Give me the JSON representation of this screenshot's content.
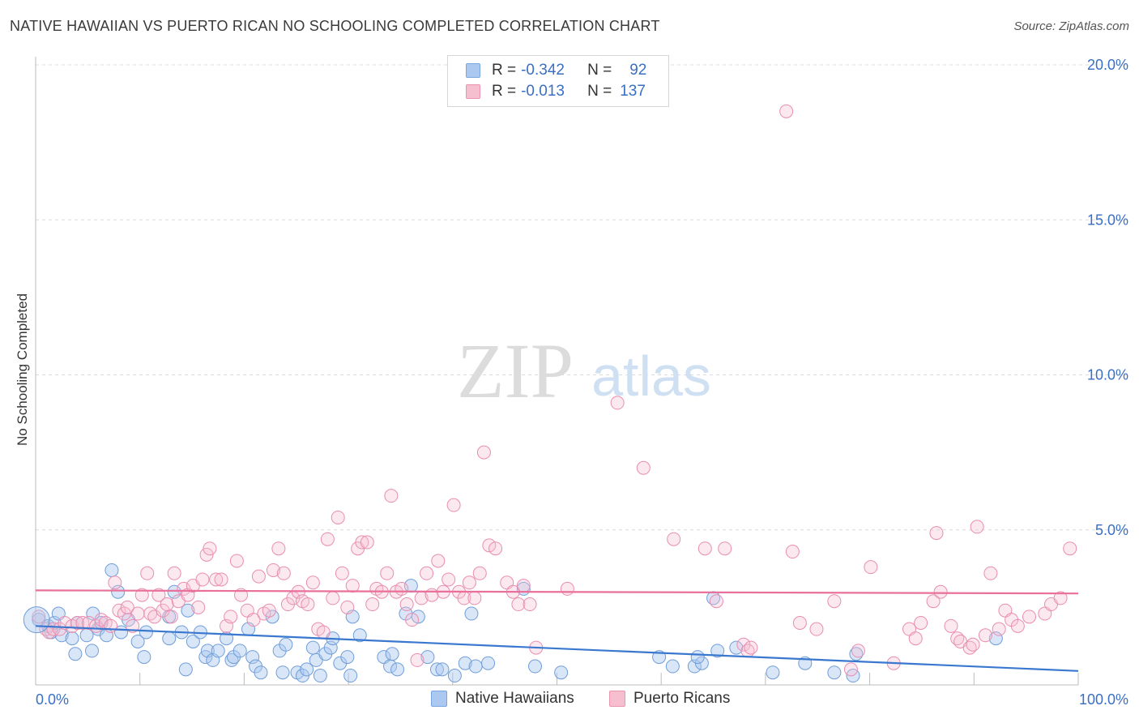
{
  "header": {
    "title": "NATIVE HAWAIIAN VS PUERTO RICAN NO SCHOOLING COMPLETED CORRELATION CHART",
    "source": "Source: ZipAtlas.com"
  },
  "watermark": {
    "zip": "ZIP",
    "atlas": "atlas"
  },
  "legend": {
    "rows": [
      {
        "r_label": "R =",
        "r_value": "-0.342",
        "n_label": "N =",
        "n_value": "92",
        "color": "#aac8f0",
        "stroke": "#7aa6e0"
      },
      {
        "r_label": "R =",
        "r_value": "-0.013",
        "n_label": "N =",
        "n_value": "137",
        "color": "#f6bfd0",
        "stroke": "#ec93b0"
      }
    ]
  },
  "bottom_legend": [
    {
      "label": "Native Hawaiians",
      "color": "#aac8f0",
      "stroke": "#7aa6e0"
    },
    {
      "label": "Puerto Ricans",
      "color": "#f6bfd0",
      "stroke": "#ec93b0"
    }
  ],
  "chart_data": {
    "type": "scatter",
    "title": "NATIVE HAWAIIAN VS PUERTO RICAN NO SCHOOLING COMPLETED CORRELATION CHART",
    "xlabel": "",
    "ylabel": "No Schooling Completed",
    "xlim": [
      0,
      100
    ],
    "ylim": [
      0,
      20.5
    ],
    "x_tick_labels": [
      "0.0%",
      "100.0%"
    ],
    "y_ticks": [
      5,
      10,
      15,
      20
    ],
    "y_tick_labels": [
      "5.0%",
      "10.0%",
      "15.0%",
      "20.0%"
    ],
    "grid": true,
    "colors": {
      "blue": "#3a78d0",
      "pink": "#e8709a",
      "axis_text": "#3a6fc4"
    },
    "series": [
      {
        "name": "Native Hawaiians",
        "r": -0.342,
        "n": 92,
        "trend": {
          "x": [
            0,
            100
          ],
          "y": [
            1.9,
            0.45
          ]
        },
        "points": [
          [
            0.3,
            2.1
          ],
          [
            1.2,
            1.9
          ],
          [
            1.5,
            1.7
          ],
          [
            1.8,
            2.0
          ],
          [
            2.5,
            1.6
          ],
          [
            2.2,
            2.3
          ],
          [
            3.5,
            1.5
          ],
          [
            4.0,
            2.0
          ],
          [
            3.8,
            1.0
          ],
          [
            4.9,
            1.6
          ],
          [
            5.4,
            1.1
          ],
          [
            5.5,
            2.3
          ],
          [
            6.0,
            1.8
          ],
          [
            6.3,
            2.0
          ],
          [
            6.8,
            1.6
          ],
          [
            7.3,
            3.7
          ],
          [
            7.9,
            3.0
          ],
          [
            8.2,
            1.7
          ],
          [
            8.9,
            2.1
          ],
          [
            9.8,
            1.4
          ],
          [
            10.4,
            0.9
          ],
          [
            10.6,
            1.7
          ],
          [
            12.8,
            1.5
          ],
          [
            12.8,
            2.2
          ],
          [
            13.3,
            3.0
          ],
          [
            14.0,
            1.7
          ],
          [
            14.4,
            0.5
          ],
          [
            14.6,
            2.4
          ],
          [
            15.1,
            1.4
          ],
          [
            15.8,
            1.7
          ],
          [
            16.3,
            0.9
          ],
          [
            16.5,
            1.1
          ],
          [
            17.0,
            0.8
          ],
          [
            17.5,
            1.1
          ],
          [
            18.3,
            1.5
          ],
          [
            18.8,
            0.8
          ],
          [
            19.0,
            0.9
          ],
          [
            19.6,
            1.1
          ],
          [
            20.4,
            1.8
          ],
          [
            20.8,
            0.9
          ],
          [
            21.1,
            0.6
          ],
          [
            21.6,
            0.4
          ],
          [
            22.7,
            2.2
          ],
          [
            23.4,
            1.1
          ],
          [
            23.7,
            0.4
          ],
          [
            24.0,
            1.3
          ],
          [
            25.1,
            0.4
          ],
          [
            25.6,
            0.3
          ],
          [
            26.0,
            0.5
          ],
          [
            26.6,
            1.2
          ],
          [
            26.9,
            0.8
          ],
          [
            27.3,
            0.3
          ],
          [
            27.8,
            1.0
          ],
          [
            28.3,
            1.2
          ],
          [
            28.5,
            1.5
          ],
          [
            29.2,
            0.7
          ],
          [
            29.9,
            0.9
          ],
          [
            30.2,
            0.3
          ],
          [
            30.4,
            2.2
          ],
          [
            31.1,
            1.6
          ],
          [
            33.4,
            0.9
          ],
          [
            34.0,
            0.6
          ],
          [
            34.2,
            1.0
          ],
          [
            34.7,
            0.5
          ],
          [
            35.5,
            2.3
          ],
          [
            36.0,
            3.2
          ],
          [
            36.7,
            2.2
          ],
          [
            37.6,
            0.9
          ],
          [
            38.5,
            0.5
          ],
          [
            39.0,
            0.5
          ],
          [
            40.2,
            0.3
          ],
          [
            41.2,
            0.7
          ],
          [
            41.8,
            2.3
          ],
          [
            42.2,
            0.6
          ],
          [
            43.4,
            0.7
          ],
          [
            46.8,
            3.1
          ],
          [
            47.9,
            0.6
          ],
          [
            50.4,
            0.4
          ],
          [
            59.8,
            0.9
          ],
          [
            61.1,
            0.6
          ],
          [
            63.2,
            0.6
          ],
          [
            63.9,
            0.7
          ],
          [
            63.5,
            0.9
          ],
          [
            65.4,
            1.1
          ],
          [
            65.0,
            2.8
          ],
          [
            67.2,
            1.2
          ],
          [
            70.7,
            0.4
          ],
          [
            73.8,
            0.7
          ],
          [
            76.6,
            0.4
          ],
          [
            78.4,
            0.3
          ],
          [
            78.7,
            1.0
          ],
          [
            92.1,
            1.5
          ]
        ]
      },
      {
        "name": "Puerto Ricans",
        "r": -0.013,
        "n": 137,
        "trend": {
          "x": [
            0,
            100
          ],
          "y": [
            3.05,
            2.95
          ]
        },
        "points": [
          [
            0.3,
            2.2
          ],
          [
            1.0,
            1.8
          ],
          [
            1.3,
            1.7
          ],
          [
            1.7,
            1.8
          ],
          [
            2.3,
            1.8
          ],
          [
            2.8,
            2.0
          ],
          [
            3.5,
            1.9
          ],
          [
            4.0,
            2.0
          ],
          [
            4.5,
            2.0
          ],
          [
            5.1,
            2.0
          ],
          [
            5.8,
            1.9
          ],
          [
            6.3,
            2.1
          ],
          [
            6.7,
            2.0
          ],
          [
            7.2,
            1.9
          ],
          [
            7.6,
            3.3
          ],
          [
            8.0,
            2.4
          ],
          [
            8.5,
            2.3
          ],
          [
            8.8,
            2.5
          ],
          [
            9.3,
            1.9
          ],
          [
            9.8,
            2.3
          ],
          [
            10.2,
            2.9
          ],
          [
            10.7,
            3.6
          ],
          [
            11.0,
            2.3
          ],
          [
            11.4,
            2.2
          ],
          [
            11.8,
            2.9
          ],
          [
            12.2,
            2.4
          ],
          [
            12.6,
            2.6
          ],
          [
            13.0,
            2.2
          ],
          [
            13.3,
            3.6
          ],
          [
            13.7,
            2.7
          ],
          [
            14.2,
            3.1
          ],
          [
            14.6,
            2.9
          ],
          [
            15.1,
            3.2
          ],
          [
            15.6,
            2.5
          ],
          [
            16.0,
            3.4
          ],
          [
            16.4,
            4.2
          ],
          [
            16.7,
            4.4
          ],
          [
            17.3,
            3.4
          ],
          [
            17.8,
            3.4
          ],
          [
            18.3,
            1.9
          ],
          [
            18.7,
            2.2
          ],
          [
            19.3,
            4.0
          ],
          [
            19.7,
            2.9
          ],
          [
            20.3,
            2.4
          ],
          [
            20.9,
            2.1
          ],
          [
            21.4,
            3.5
          ],
          [
            21.9,
            2.3
          ],
          [
            22.4,
            2.4
          ],
          [
            22.8,
            3.7
          ],
          [
            23.3,
            4.4
          ],
          [
            23.8,
            3.6
          ],
          [
            24.2,
            2.6
          ],
          [
            24.7,
            2.8
          ],
          [
            25.2,
            3.0
          ],
          [
            25.6,
            2.7
          ],
          [
            26.1,
            2.6
          ],
          [
            26.6,
            3.3
          ],
          [
            27.1,
            1.8
          ],
          [
            27.6,
            1.7
          ],
          [
            28.0,
            4.7
          ],
          [
            28.5,
            2.8
          ],
          [
            29.0,
            5.4
          ],
          [
            29.4,
            3.6
          ],
          [
            29.9,
            2.5
          ],
          [
            30.4,
            3.2
          ],
          [
            30.9,
            4.4
          ],
          [
            31.3,
            4.6
          ],
          [
            31.8,
            4.6
          ],
          [
            32.3,
            2.6
          ],
          [
            32.7,
            3.1
          ],
          [
            33.2,
            3.0
          ],
          [
            33.7,
            3.6
          ],
          [
            34.1,
            6.1
          ],
          [
            34.6,
            3.0
          ],
          [
            35.1,
            3.1
          ],
          [
            35.6,
            2.6
          ],
          [
            36.1,
            2.1
          ],
          [
            36.6,
            0.8
          ],
          [
            37.0,
            2.8
          ],
          [
            37.5,
            3.6
          ],
          [
            38.0,
            2.9
          ],
          [
            38.6,
            4.0
          ],
          [
            39.1,
            3.0
          ],
          [
            39.6,
            3.4
          ],
          [
            40.1,
            5.8
          ],
          [
            40.6,
            3.0
          ],
          [
            41.1,
            2.8
          ],
          [
            41.6,
            3.3
          ],
          [
            42.1,
            2.8
          ],
          [
            42.6,
            3.6
          ],
          [
            43.0,
            7.5
          ],
          [
            43.5,
            4.5
          ],
          [
            44.1,
            4.4
          ],
          [
            45.2,
            3.3
          ],
          [
            45.8,
            3.0
          ],
          [
            46.3,
            2.6
          ],
          [
            46.8,
            3.2
          ],
          [
            47.4,
            2.6
          ],
          [
            48.0,
            1.2
          ],
          [
            51.0,
            3.1
          ],
          [
            55.8,
            9.1
          ],
          [
            58.3,
            7.0
          ],
          [
            61.2,
            4.7
          ],
          [
            64.2,
            4.4
          ],
          [
            65.3,
            2.7
          ],
          [
            66.1,
            4.4
          ],
          [
            67.9,
            1.3
          ],
          [
            68.3,
            1.1
          ],
          [
            68.6,
            1.2
          ],
          [
            72.0,
            18.5
          ],
          [
            72.6,
            4.3
          ],
          [
            73.3,
            2.0
          ],
          [
            74.9,
            1.8
          ],
          [
            76.6,
            2.7
          ],
          [
            78.2,
            0.5
          ],
          [
            78.9,
            1.1
          ],
          [
            80.1,
            3.8
          ],
          [
            82.3,
            0.7
          ],
          [
            83.8,
            1.8
          ],
          [
            84.4,
            1.5
          ],
          [
            84.9,
            2.0
          ],
          [
            86.1,
            2.7
          ],
          [
            86.4,
            4.9
          ],
          [
            86.8,
            3.0
          ],
          [
            87.8,
            1.9
          ],
          [
            88.4,
            1.5
          ],
          [
            88.7,
            1.4
          ],
          [
            89.6,
            1.2
          ],
          [
            89.9,
            1.3
          ],
          [
            90.3,
            5.1
          ],
          [
            91.1,
            1.6
          ],
          [
            91.6,
            3.6
          ],
          [
            92.4,
            1.8
          ],
          [
            93.0,
            2.4
          ],
          [
            93.6,
            2.1
          ],
          [
            94.2,
            1.9
          ],
          [
            95.3,
            2.2
          ],
          [
            96.8,
            2.3
          ],
          [
            97.4,
            2.6
          ],
          [
            98.3,
            2.8
          ],
          [
            99.2,
            4.4
          ]
        ]
      }
    ]
  }
}
